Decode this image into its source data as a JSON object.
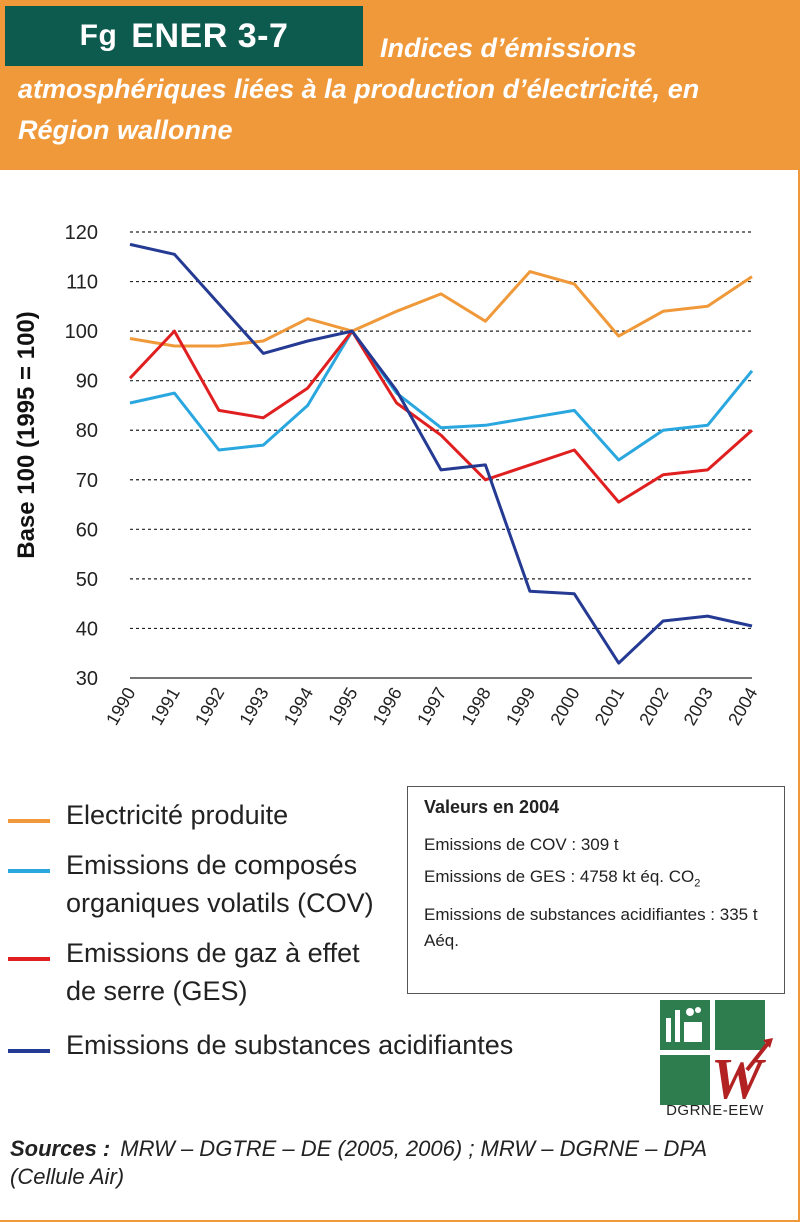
{
  "header": {
    "fig_prefix": "Fg",
    "fig_code": "ENER 3-7",
    "title": "Indices d’émissions atmosphériques liées à la production d’électricité, en Région wallonne"
  },
  "chart_data": {
    "type": "line",
    "ylabel": "Base 100 (1995 = 100)",
    "ylim": [
      30,
      120
    ],
    "yticks": [
      120,
      110,
      100,
      90,
      80,
      70,
      60,
      50,
      40,
      30
    ],
    "grid": "dashed horizontal",
    "categories": [
      "1990",
      "1991",
      "1992",
      "1993",
      "1994",
      "1995",
      "1996",
      "1997",
      "1998",
      "1999",
      "2000",
      "2001",
      "2002",
      "2003",
      "2004"
    ],
    "series": [
      {
        "name": "Electricité produite",
        "color": "#f0993a",
        "values": [
          98.5,
          97,
          97,
          98,
          102.5,
          100,
          104,
          107.5,
          102,
          112,
          109.5,
          99,
          104,
          105,
          111
        ]
      },
      {
        "name": "Emissions de composés organiques volatils (COV)",
        "color": "#2aa7df",
        "values": [
          85.5,
          87.5,
          76,
          77,
          85,
          100,
          87.5,
          80.5,
          81,
          82.5,
          84,
          74,
          80,
          81,
          92
        ]
      },
      {
        "name": "Emissions de gaz à effet de serre (GES)",
        "color": "#e02020",
        "values": [
          90.5,
          100,
          84,
          82.5,
          88.5,
          100,
          85.5,
          79,
          70,
          73,
          76,
          65.5,
          71,
          72,
          80
        ]
      },
      {
        "name": "Emissions de substances acidifiantes",
        "color": "#253a93",
        "values": [
          117.5,
          115.5,
          105.5,
          95.5,
          98,
          100,
          88,
          72,
          73,
          47.5,
          47,
          33,
          41.5,
          42.5,
          40.5
        ]
      }
    ]
  },
  "values_box": {
    "title": "Valeurs en 2004",
    "line1": "Emissions de COV : 309 t",
    "line2_prefix": "Emissions de GES : 4758 kt éq. CO",
    "line2_sub": "2",
    "line3": "Emissions de substances acidifiantes : 335 t Aéq."
  },
  "logo": {
    "text": "DGRNE-EEW",
    "letter": "W",
    "green": "#2e7d4f",
    "red": "#b22222"
  },
  "sources": {
    "label": "Sources :",
    "text": "MRW – DGTRE – DE (2005, 2006) ; MRW – DGRNE – DPA (Cellule Air)"
  }
}
